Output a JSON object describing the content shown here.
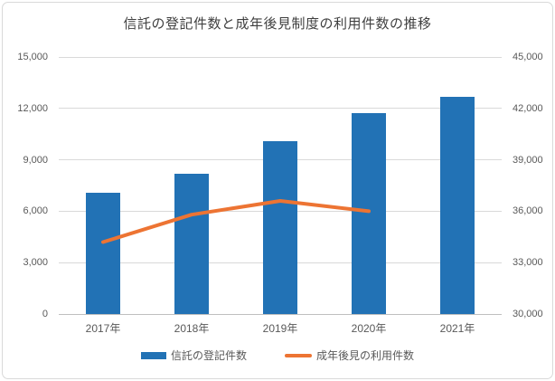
{
  "title": "信託の登記件数と成年後見制度の利用件数の推移",
  "colors": {
    "bar": "#2272b5",
    "line": "#ed7433",
    "grid": "#d9d9d9",
    "axis_text": "#595959",
    "title_text": "#3f3f3f"
  },
  "chart_data": {
    "type": "bar",
    "subtype": "bar+line combo, dual axis",
    "title": "信託の登記件数と成年後見制度の利用件数の推移",
    "categories": [
      "2017年",
      "2018年",
      "2019年",
      "2020年",
      "2021年"
    ],
    "series": [
      {
        "name": "信託の登記件数",
        "type": "bar",
        "axis": "left",
        "values": [
          7100,
          8200,
          10100,
          11700,
          12700
        ]
      },
      {
        "name": "成年後見の利用件数",
        "type": "line",
        "axis": "right",
        "values": [
          34200,
          35800,
          36600,
          36000,
          null
        ]
      }
    ],
    "left_axis": {
      "min": 0,
      "max": 15000,
      "step": 3000,
      "ticks": [
        "0",
        "3,000",
        "6,000",
        "9,000",
        "12,000",
        "15,000"
      ]
    },
    "right_axis": {
      "min": 30000,
      "max": 45000,
      "step": 3000,
      "ticks": [
        "30,000",
        "33,000",
        "36,000",
        "39,000",
        "42,000",
        "45,000"
      ]
    },
    "grid": true,
    "legend_position": "bottom"
  }
}
